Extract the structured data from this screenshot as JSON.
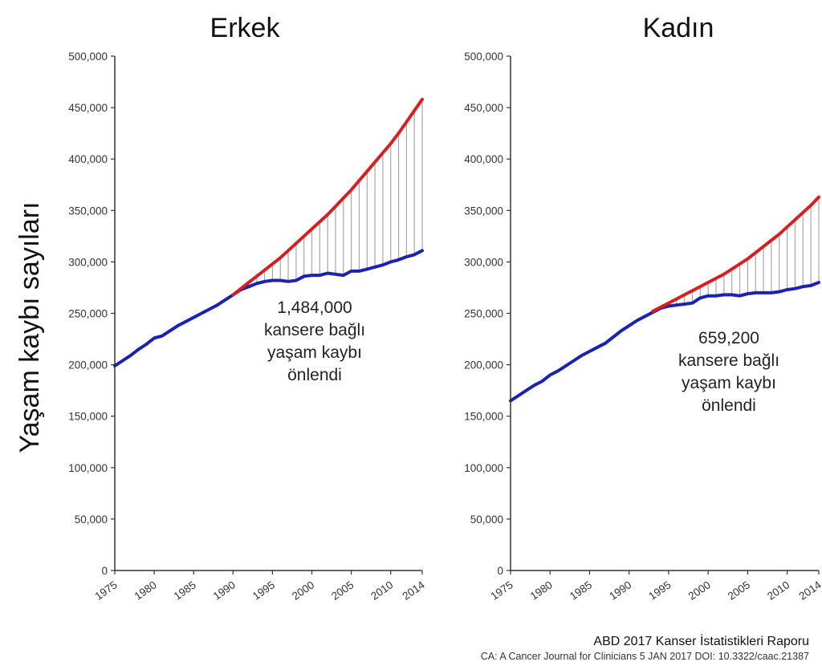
{
  "y_axis_label": "Yaşam kaybı sayıları",
  "source": {
    "line1": "ABD 2017 Kanser İstatistikleri Raporu",
    "line2": "CA: A Cancer Journal for Clinicians 5 JAN 2017 DOI: 10.3322/caac.21387"
  },
  "colors": {
    "expected": "#d62020",
    "observed": "#1a23b0",
    "gap_lines": "#a8a8a8",
    "axis": "#333333"
  },
  "chart_data": [
    {
      "type": "line",
      "title": "Erkek",
      "xlabel": "",
      "ylabel": "Yaşam kaybı sayıları",
      "xlim": [
        1975,
        2014
      ],
      "ylim": [
        0,
        500000
      ],
      "x_ticks": [
        1975,
        1980,
        1985,
        1990,
        1995,
        2000,
        2005,
        2010,
        2014
      ],
      "y_ticks": [
        0,
        50000,
        100000,
        150000,
        200000,
        250000,
        300000,
        350000,
        400000,
        450000,
        500000
      ],
      "y_tick_labels": [
        "0",
        "50,000",
        "100,000",
        "150,000",
        "200,000",
        "250,000",
        "300,000",
        "350,000",
        "400,000",
        "450,000",
        "500,000"
      ],
      "annotation": [
        "1,484,000",
        "kansere bağlı",
        "yaşam kaybı",
        "önlendi"
      ],
      "annotation_value": 1484000,
      "grid": false,
      "series": [
        {
          "key": "observed",
          "x": [
            1975,
            1976,
            1977,
            1978,
            1979,
            1980,
            1981,
            1982,
            1983,
            1984,
            1985,
            1986,
            1987,
            1988,
            1989,
            1990,
            1991,
            1992,
            1993,
            1994,
            1995,
            1996,
            1997,
            1998,
            1999,
            2000,
            2001,
            2002,
            2003,
            2004,
            2005,
            2006,
            2007,
            2008,
            2009,
            2010,
            2011,
            2012,
            2013,
            2014
          ],
          "values": [
            199000,
            204000,
            209000,
            215000,
            220000,
            226000,
            228000,
            233000,
            238000,
            242000,
            246000,
            250000,
            254000,
            258000,
            263000,
            268000,
            273000,
            276000,
            279000,
            281000,
            282000,
            282000,
            281000,
            282000,
            286000,
            287000,
            287000,
            289000,
            288000,
            287000,
            291000,
            291000,
            293000,
            295000,
            297000,
            300000,
            302000,
            305000,
            307000,
            311000
          ]
        },
        {
          "key": "expected",
          "x": [
            1990,
            1991,
            1992,
            1993,
            1994,
            1995,
            1996,
            1997,
            1998,
            1999,
            2000,
            2001,
            2002,
            2003,
            2004,
            2005,
            2006,
            2007,
            2008,
            2009,
            2010,
            2011,
            2012,
            2013,
            2014
          ],
          "values": [
            268000,
            274000,
            280000,
            286000,
            292000,
            298000,
            304000,
            311000,
            318000,
            325000,
            332000,
            339000,
            346000,
            354000,
            362000,
            370000,
            379000,
            388000,
            397000,
            406000,
            415000,
            425000,
            436000,
            447000,
            458000
          ]
        }
      ]
    },
    {
      "type": "line",
      "title": "Kadın",
      "xlabel": "",
      "ylabel": "",
      "xlim": [
        1975,
        2014
      ],
      "ylim": [
        0,
        500000
      ],
      "x_ticks": [
        1975,
        1980,
        1985,
        1990,
        1995,
        2000,
        2005,
        2010,
        2014
      ],
      "y_ticks": [
        0,
        50000,
        100000,
        150000,
        200000,
        250000,
        300000,
        350000,
        400000,
        450000,
        500000
      ],
      "y_tick_labels": [
        "0",
        "50,000",
        "100,000",
        "150,000",
        "200,000",
        "250,000",
        "300,000",
        "350,000",
        "400,000",
        "450,000",
        "500,000"
      ],
      "annotation": [
        "659,200",
        "kansere bağlı",
        "yaşam kaybı",
        "önlendi"
      ],
      "annotation_value": 659200,
      "grid": false,
      "series": [
        {
          "key": "observed",
          "x": [
            1975,
            1976,
            1977,
            1978,
            1979,
            1980,
            1981,
            1982,
            1983,
            1984,
            1985,
            1986,
            1987,
            1988,
            1989,
            1990,
            1991,
            1992,
            1993,
            1994,
            1995,
            1996,
            1997,
            1998,
            1999,
            2000,
            2001,
            2002,
            2003,
            2004,
            2005,
            2006,
            2007,
            2008,
            2009,
            2010,
            2011,
            2012,
            2013,
            2014
          ],
          "values": [
            165000,
            170000,
            175000,
            180000,
            184000,
            190000,
            194000,
            199000,
            204000,
            209000,
            213000,
            217000,
            221000,
            227000,
            233000,
            238000,
            243000,
            247000,
            251000,
            255000,
            257000,
            258000,
            259000,
            260000,
            265000,
            267000,
            267000,
            268000,
            268000,
            267000,
            269000,
            270000,
            270000,
            270000,
            271000,
            273000,
            274000,
            276000,
            277000,
            280000
          ]
        },
        {
          "key": "expected",
          "x": [
            1993,
            1994,
            1995,
            1996,
            1997,
            1998,
            1999,
            2000,
            2001,
            2002,
            2003,
            2004,
            2005,
            2006,
            2007,
            2008,
            2009,
            2010,
            2011,
            2012,
            2013,
            2014
          ],
          "values": [
            252000,
            256000,
            260000,
            264000,
            268000,
            272000,
            276000,
            280000,
            284000,
            288000,
            293000,
            298000,
            303000,
            309000,
            315000,
            321000,
            327000,
            334000,
            341000,
            348000,
            355000,
            363000
          ]
        }
      ]
    }
  ]
}
